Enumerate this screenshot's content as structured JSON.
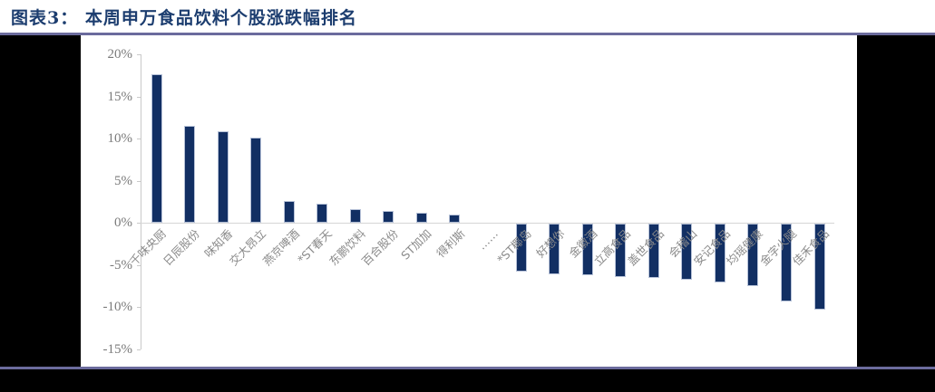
{
  "header": {
    "title": "图表3： 本周申万食品饮料个股涨跌幅排名"
  },
  "colors": {
    "bar": "#122f63",
    "bar_border": "#b7c2d8",
    "rule": "#6b6b9d",
    "title_text": "#1c3d6f",
    "axis_text": "#7a7a7a",
    "category_text": "#8a8a8a",
    "axis_line": "#c9c9c9",
    "zero_line": "#d6d6d6",
    "page_background": "#000000",
    "panel_background": "#ffffff"
  },
  "chart_data": {
    "type": "bar",
    "title": "本周申万食品饮料个股涨跌幅排名",
    "unit": "%",
    "categories": [
      "千味央厨",
      "日辰股份",
      "味知香",
      "交大昂立",
      "燕京啤酒",
      "*ST春天",
      "东鹏饮料",
      "百合股份",
      "ST加加",
      "得利斯",
      "……",
      "*ST椰岛",
      "好想你",
      "金徽酒",
      "立高食品",
      "盖世食品",
      "会稽山",
      "安记食品",
      "均瑶健康",
      "金字火腿",
      "佳禾食品"
    ],
    "values": [
      17.6,
      11.5,
      10.9,
      10.1,
      2.6,
      2.3,
      1.6,
      1.4,
      1.2,
      1.0,
      null,
      -5.7,
      -6.0,
      -6.1,
      -6.3,
      -6.5,
      -6.7,
      -7.0,
      -7.4,
      -9.3,
      -10.2
    ],
    "ytick_labels": [
      "20%",
      "15%",
      "10%",
      "5%",
      "0%",
      "-5%",
      "-10%",
      "-15%"
    ],
    "ylim": [
      -15,
      20
    ],
    "xlabel": "",
    "ylabel": "",
    "legend": "none",
    "grid": "zero-line-only",
    "bar_color": "#122f63"
  }
}
